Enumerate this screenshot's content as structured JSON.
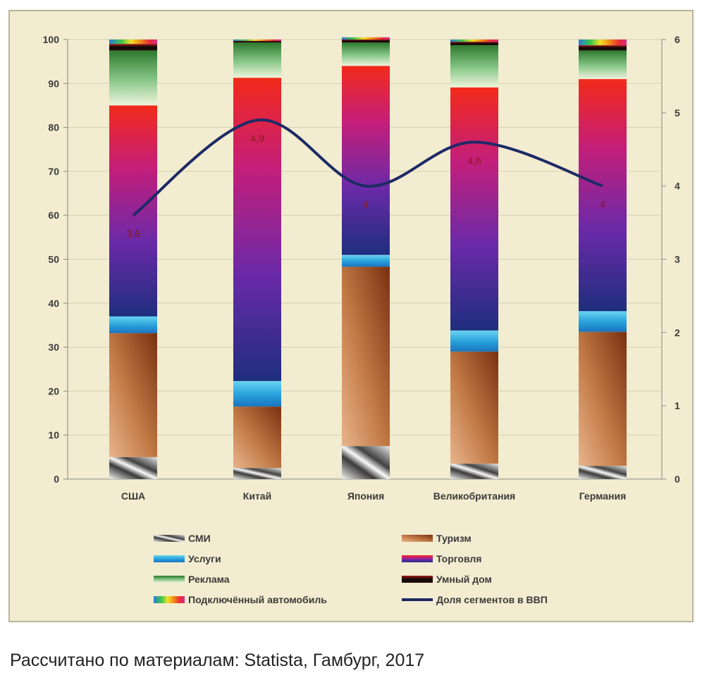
{
  "chart_data": {
    "type": "bar",
    "stacked": true,
    "categories": [
      "США",
      "Китай",
      "Япония",
      "Великобритания",
      "Германия"
    ],
    "ylim": [
      0,
      100
    ],
    "y_ticks": [
      "0",
      "10",
      "20",
      "30",
      "40",
      "50",
      "60",
      "70",
      "80",
      "90",
      "100"
    ],
    "y2lim": [
      0,
      6
    ],
    "y2_ticks": [
      "0",
      "1",
      "2",
      "3",
      "4",
      "5",
      "6"
    ],
    "grid": true,
    "legend_position": "bottom",
    "series": [
      {
        "name": "СМИ",
        "values": [
          5,
          2.5,
          7.5,
          3.5,
          3
        ],
        "color": "#8a8a8a"
      },
      {
        "name": "Туризм",
        "values": [
          28.2,
          14,
          40.8,
          25.5,
          30.5
        ],
        "color": "#a85a28"
      },
      {
        "name": "Услуги",
        "values": [
          3.8,
          5.8,
          2.7,
          4.8,
          4.7
        ],
        "color": "#2aa4dc"
      },
      {
        "name": "Торговля",
        "values": [
          48,
          69,
          43,
          55.3,
          52.8
        ],
        "color": "#8a2a9a"
      },
      {
        "name": "Реклама",
        "values": [
          12.5,
          8,
          5.3,
          9.6,
          6.5
        ],
        "color": "#3a8a3a"
      },
      {
        "name": "Умный дом",
        "values": [
          1.5,
          0.4,
          0.7,
          0.8,
          1.2
        ],
        "color": "#1a0a0a"
      },
      {
        "name": "Подключённый автомобиль",
        "values": [
          1,
          0.3,
          0.5,
          0.5,
          1.3
        ],
        "color": "#e83060"
      }
    ],
    "line": {
      "name": "Доля сегментов в ВВП",
      "values": [
        3.6,
        4.9,
        4,
        4.6,
        4
      ],
      "labels": [
        "3,6",
        "4,9",
        "4",
        "4,6",
        "4"
      ],
      "axis": "right",
      "color": "#1e2a66"
    }
  },
  "source_text": "Рассчитано по материалам: Statista, Гамбург, 2017"
}
